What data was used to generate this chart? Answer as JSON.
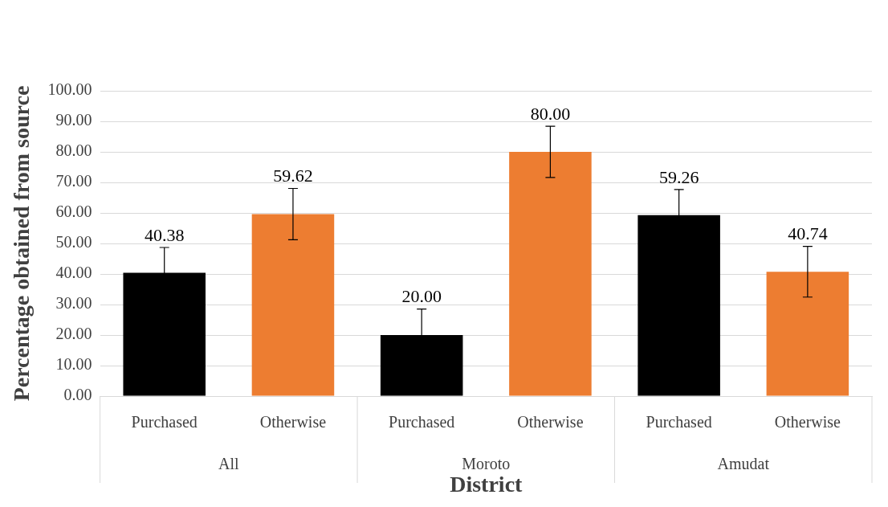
{
  "chart_data": {
    "type": "bar",
    "xlabel": "District",
    "ylabel": "Percentage obtained from source",
    "categories": [
      "Purchased",
      "Otherwise",
      "Purchased",
      "Otherwise",
      "Purchased",
      "Otherwise"
    ],
    "values": [
      40.38,
      59.62,
      20.0,
      80.0,
      59.26,
      40.74
    ],
    "colors": [
      "#000000",
      "#ed7d31",
      "#000000",
      "#ed7d31",
      "#000000",
      "#ed7d31"
    ],
    "errors": [
      8.3,
      8.4,
      8.5,
      8.4,
      8.4,
      8.3
    ],
    "value_labels": [
      "40.38",
      "59.62",
      "20.00",
      "80.00",
      "59.26",
      "40.74"
    ],
    "annotations": [
      "All",
      "Moroto",
      "Amudat"
    ],
    "ylim": [
      0,
      100
    ],
    "yticks": [
      {
        "value": 0,
        "label": "0.00"
      },
      {
        "value": 10,
        "label": "10.00"
      },
      {
        "value": 20,
        "label": "20.00"
      },
      {
        "value": 30,
        "label": "30.00"
      },
      {
        "value": 40,
        "label": "40.00"
      },
      {
        "value": 50,
        "label": "50.00"
      },
      {
        "value": 60,
        "label": "60.00"
      },
      {
        "value": 70,
        "label": "70.00"
      },
      {
        "value": 80,
        "label": "80.00"
      },
      {
        "value": 90,
        "label": "90.00"
      },
      {
        "value": 100,
        "label": "100.00"
      }
    ],
    "grid": "y"
  }
}
